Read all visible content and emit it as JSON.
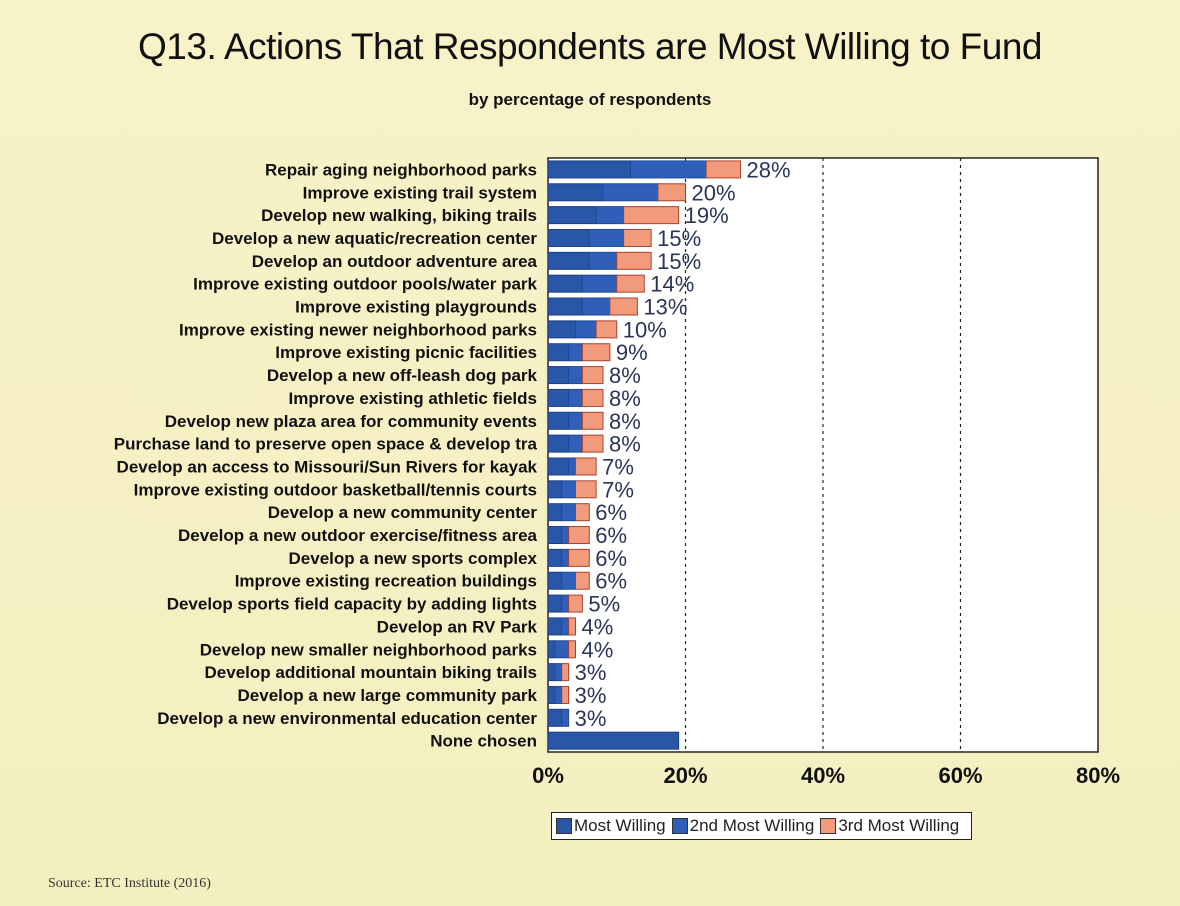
{
  "title": "Q13. Actions That Respondents are Most Willing to Fund",
  "subtitle": "by percentage of respondents",
  "source": "Source: ETC Institute (2016)",
  "colors": {
    "most": "#2a56a8",
    "second": "#2f5fb8",
    "third": "#f29a7c",
    "background": "#f6f1c4"
  },
  "chart_data": {
    "type": "bar",
    "orientation": "horizontal",
    "stacked": true,
    "xlim": [
      0,
      80
    ],
    "x_ticks": [
      "0%",
      "20%",
      "40%",
      "60%",
      "80%"
    ],
    "x_tick_values": [
      0,
      20,
      40,
      60,
      80
    ],
    "grid": "vertical dashed",
    "legend_position": "bottom",
    "categories": [
      "Repair aging neighborhood parks",
      "Improve existing trail system",
      "Develop new walking, biking trails",
      "Develop a new aquatic/recreation center",
      "Develop an outdoor adventure area",
      "Improve existing outdoor pools/water park",
      "Improve existing playgrounds",
      "Improve existing newer neighborhood parks",
      "Improve existing picnic facilities",
      "Develop a new off-leash dog park",
      "Improve existing athletic fields",
      "Develop new plaza area for community events",
      "Purchase land to preserve open space & develop tra",
      "Develop an access to Missouri/Sun Rivers for kayak",
      "Improve existing outdoor basketball/tennis courts",
      "Develop a new community center",
      "Develop a new outdoor exercise/fitness area",
      "Develop a new sports complex",
      "Improve existing recreation buildings",
      "Develop sports field capacity by adding lights",
      "Develop an RV Park",
      "Develop new smaller neighborhood parks",
      "Develop additional mountain biking trails",
      "Develop a new large community park",
      "Develop a new environmental education center",
      "None chosen"
    ],
    "series": [
      {
        "name": "Most Willing",
        "values": [
          12,
          8,
          7,
          6,
          6,
          5,
          5,
          4,
          3,
          3,
          3,
          3,
          3,
          3,
          2,
          2,
          2,
          2,
          2,
          2,
          2,
          1,
          1,
          1,
          2,
          19
        ]
      },
      {
        "name": "2nd Most Willing",
        "values": [
          11,
          8,
          4,
          5,
          4,
          5,
          4,
          3,
          2,
          2,
          2,
          2,
          2,
          1,
          2,
          2,
          1,
          1,
          2,
          1,
          1,
          2,
          1,
          1,
          1,
          0
        ]
      },
      {
        "name": "3rd Most Willing",
        "values": [
          5,
          4,
          8,
          4,
          5,
          4,
          4,
          3,
          4,
          3,
          3,
          3,
          3,
          3,
          3,
          2,
          3,
          3,
          2,
          2,
          1,
          1,
          1,
          1,
          0,
          0
        ]
      }
    ],
    "data_labels": [
      "28%",
      "20%",
      "19%",
      "15%",
      "15%",
      "14%",
      "13%",
      "10%",
      "9%",
      "8%",
      "8%",
      "8%",
      "8%",
      "7%",
      "7%",
      "6%",
      "6%",
      "6%",
      "6%",
      "5%",
      "4%",
      "4%",
      "3%",
      "3%",
      "3%",
      ""
    ]
  }
}
